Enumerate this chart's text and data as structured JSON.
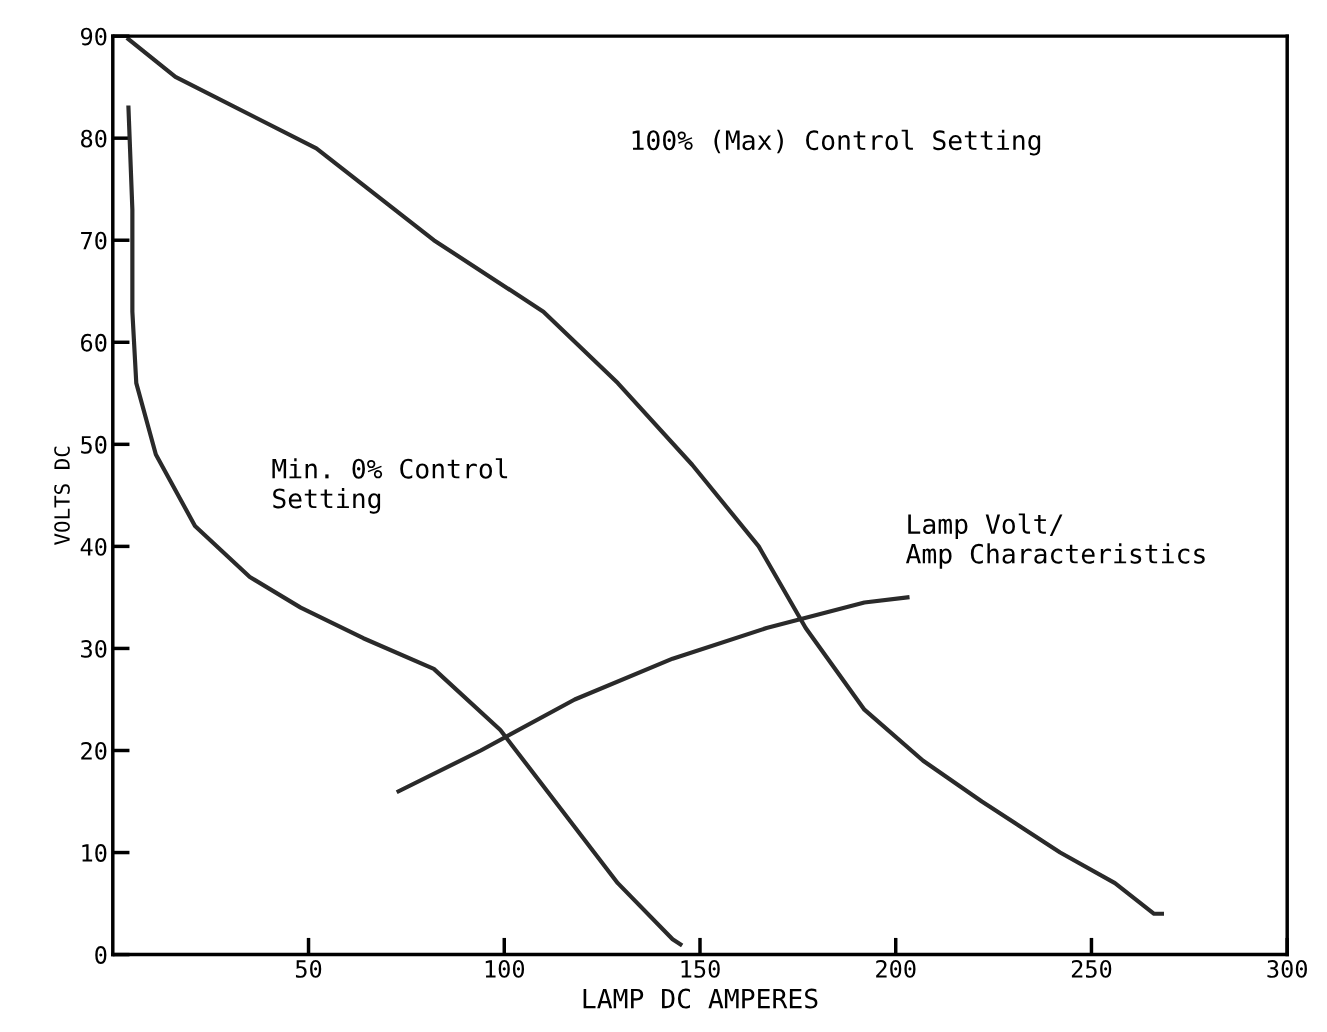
{
  "chart_data": {
    "type": "line",
    "xlabel": "LAMP DC AMPERES",
    "ylabel": "VOLTS DC",
    "xlim": [
      0,
      300
    ],
    "ylim": [
      0,
      90
    ],
    "xticks": [
      50,
      100,
      150,
      200,
      250,
      300
    ],
    "yticks": [
      0,
      10,
      20,
      30,
      40,
      50,
      60,
      70,
      80,
      90
    ],
    "grid": false,
    "marker": "none",
    "line_style": "solid",
    "series": [
      {
        "color": "#2a2a2a",
        "x": [
          4,
          16,
          52,
          82,
          110,
          129,
          148,
          165,
          177,
          192,
          207,
          222,
          242,
          256,
          266,
          268
        ],
        "values": [
          89.7,
          86,
          79,
          70,
          63,
          56,
          48,
          40,
          32,
          24,
          19,
          15,
          10,
          7,
          4,
          4
        ]
      },
      {
        "color": "#2a2a2a",
        "x": [
          4,
          5,
          5,
          6,
          11,
          21,
          35,
          48,
          64,
          82,
          99,
          113,
          129,
          143,
          145
        ],
        "values": [
          83,
          73,
          63,
          56,
          49,
          42,
          37,
          34,
          31,
          28,
          22,
          15,
          7,
          1.5,
          1
        ]
      },
      {
        "color": "#2a2a2a",
        "x": [
          73,
          94,
          118,
          143,
          167,
          192,
          203
        ],
        "values": [
          16,
          20,
          25,
          29,
          32,
          34.5,
          35
        ]
      }
    ],
    "annotations": [
      "100% (Max) Control Setting",
      "Min. 0% Control\nSetting",
      "Lamp Volt/\nAmp Characteristics"
    ]
  }
}
